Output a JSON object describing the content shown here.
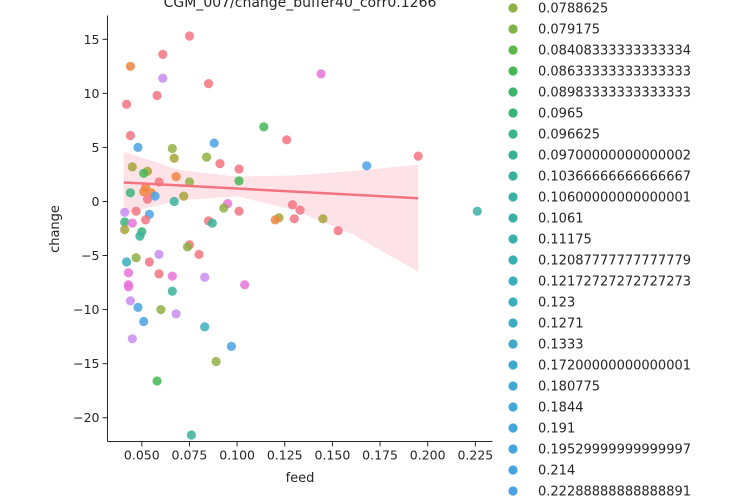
{
  "chart_data": {
    "type": "scatter",
    "title": "CGM_007/change_buffer40_corr0.1266",
    "xlabel": "feed",
    "ylabel": "change",
    "xlim": [
      0.032,
      0.234
    ],
    "ylim": [
      -22.2,
      17.2
    ],
    "xticks": [
      0.05,
      0.075,
      0.1,
      0.125,
      0.15,
      0.175,
      0.2,
      0.225
    ],
    "xtick_labels": [
      "0.050",
      "0.075",
      "0.100",
      "0.125",
      "0.150",
      "0.175",
      "0.200",
      "0.225"
    ],
    "yticks": [
      -20,
      -15,
      -10,
      -5,
      0,
      5,
      10,
      15
    ],
    "ytick_labels": [
      "−20",
      "−15",
      "−10",
      "−5",
      "0",
      "5",
      "10",
      "15"
    ],
    "grid": false,
    "legend_position": "right",
    "legend": [
      {
        "label": "0.0788625",
        "color": "#8fb043"
      },
      {
        "label": "0.079175",
        "color": "#7fb346"
      },
      {
        "label": "0.08408333333333334",
        "color": "#5ab748"
      },
      {
        "label": "0.08633333333333333",
        "color": "#45b856"
      },
      {
        "label": "0.08983333333333333",
        "color": "#3bb66a"
      },
      {
        "label": "0.0965",
        "color": "#39b479"
      },
      {
        "label": "0.096625",
        "color": "#38b486"
      },
      {
        "label": "0.09700000000000002",
        "color": "#38b391"
      },
      {
        "label": "0.10366666666666667",
        "color": "#39b29a"
      },
      {
        "label": "0.10600000000000001",
        "color": "#39b2a1"
      },
      {
        "label": "0.1061",
        "color": "#39b1a8"
      },
      {
        "label": "0.11175",
        "color": "#3ab0ad"
      },
      {
        "label": "0.12087777777777779",
        "color": "#3aafb3"
      },
      {
        "label": "0.12172727272727273",
        "color": "#3baeb9"
      },
      {
        "label": "0.123",
        "color": "#3badbe"
      },
      {
        "label": "0.1271",
        "color": "#3cacc3"
      },
      {
        "label": "0.1333",
        "color": "#3dabc8"
      },
      {
        "label": "0.17200000000000001",
        "color": "#3eaacd"
      },
      {
        "label": "0.180775",
        "color": "#40a9d2"
      },
      {
        "label": "0.1844",
        "color": "#42a8d7"
      },
      {
        "label": "0.191",
        "color": "#44a6dc"
      },
      {
        "label": "0.19529999999999997",
        "color": "#46a4e0"
      },
      {
        "label": "0.214",
        "color": "#48a3e3"
      },
      {
        "label": "0.22288888888888891",
        "color": "#4aa1e6"
      }
    ],
    "points": [
      {
        "x": 0.075,
        "y": 15.3,
        "color": "#f37480"
      },
      {
        "x": 0.044,
        "y": 12.5,
        "color": "#ef8540"
      },
      {
        "x": 0.061,
        "y": 13.6,
        "color": "#f37480"
      },
      {
        "x": 0.061,
        "y": 11.4,
        "color": "#c78cf0"
      },
      {
        "x": 0.085,
        "y": 10.9,
        "color": "#f37480"
      },
      {
        "x": 0.144,
        "y": 11.8,
        "color": "#e874d8"
      },
      {
        "x": 0.058,
        "y": 9.8,
        "color": "#f37480"
      },
      {
        "x": 0.042,
        "y": 9.0,
        "color": "#f37480"
      },
      {
        "x": 0.114,
        "y": 6.9,
        "color": "#45b856"
      },
      {
        "x": 0.044,
        "y": 6.1,
        "color": "#f37480"
      },
      {
        "x": 0.126,
        "y": 5.7,
        "color": "#f37480"
      },
      {
        "x": 0.088,
        "y": 5.4,
        "color": "#48a3e3"
      },
      {
        "x": 0.048,
        "y": 5.0,
        "color": "#48a3e3"
      },
      {
        "x": 0.066,
        "y": 4.9,
        "color": "#8fb043"
      },
      {
        "x": 0.195,
        "y": 4.2,
        "color": "#f37480"
      },
      {
        "x": 0.084,
        "y": 4.1,
        "color": "#8fb043"
      },
      {
        "x": 0.067,
        "y": 4.0,
        "color": "#a8a33a"
      },
      {
        "x": 0.091,
        "y": 3.5,
        "color": "#f37480"
      },
      {
        "x": 0.168,
        "y": 3.3,
        "color": "#48a3e3"
      },
      {
        "x": 0.045,
        "y": 3.2,
        "color": "#a8a33a"
      },
      {
        "x": 0.101,
        "y": 3.0,
        "color": "#f37480"
      },
      {
        "x": 0.053,
        "y": 2.8,
        "color": "#a8a33a"
      },
      {
        "x": 0.051,
        "y": 2.6,
        "color": "#45b856"
      },
      {
        "x": 0.068,
        "y": 2.3,
        "color": "#ef8540"
      },
      {
        "x": 0.101,
        "y": 1.9,
        "color": "#45b856"
      },
      {
        "x": 0.075,
        "y": 1.8,
        "color": "#8fb043"
      },
      {
        "x": 0.059,
        "y": 1.8,
        "color": "#f37480"
      },
      {
        "x": 0.052,
        "y": 1.3,
        "color": "#ef8540"
      },
      {
        "x": 0.044,
        "y": 0.8,
        "color": "#39b479"
      },
      {
        "x": 0.051,
        "y": 0.9,
        "color": "#ef8540"
      },
      {
        "x": 0.055,
        "y": 0.8,
        "color": "#ef8540"
      },
      {
        "x": 0.057,
        "y": 0.5,
        "color": "#48a3e3"
      },
      {
        "x": 0.072,
        "y": 0.5,
        "color": "#a8a33a"
      },
      {
        "x": 0.053,
        "y": 0.2,
        "color": "#f37480"
      },
      {
        "x": 0.067,
        "y": 0.0,
        "color": "#39b29a"
      },
      {
        "x": 0.095,
        "y": -0.2,
        "color": "#e874d8"
      },
      {
        "x": 0.129,
        "y": -0.3,
        "color": "#f37480"
      },
      {
        "x": 0.093,
        "y": -0.6,
        "color": "#8fb043"
      },
      {
        "x": 0.133,
        "y": -0.8,
        "color": "#f37480"
      },
      {
        "x": 0.047,
        "y": -0.9,
        "color": "#f37480"
      },
      {
        "x": 0.226,
        "y": -0.9,
        "color": "#39b2a1"
      },
      {
        "x": 0.101,
        "y": -0.9,
        "color": "#f37480"
      },
      {
        "x": 0.041,
        "y": -1.0,
        "color": "#c78cf0"
      },
      {
        "x": 0.054,
        "y": -1.2,
        "color": "#48a3e3"
      },
      {
        "x": 0.122,
        "y": -1.5,
        "color": "#a8a33a"
      },
      {
        "x": 0.13,
        "y": -1.6,
        "color": "#f37480"
      },
      {
        "x": 0.145,
        "y": -1.6,
        "color": "#a8a33a"
      },
      {
        "x": 0.12,
        "y": -1.7,
        "color": "#ef8540"
      },
      {
        "x": 0.052,
        "y": -1.7,
        "color": "#f37480"
      },
      {
        "x": 0.085,
        "y": -1.8,
        "color": "#f37480"
      },
      {
        "x": 0.041,
        "y": -1.9,
        "color": "#39b479"
      },
      {
        "x": 0.045,
        "y": -2.0,
        "color": "#e874d8"
      },
      {
        "x": 0.087,
        "y": -2.0,
        "color": "#39b29a"
      },
      {
        "x": 0.041,
        "y": -2.6,
        "color": "#a8a33a"
      },
      {
        "x": 0.153,
        "y": -2.7,
        "color": "#f37480"
      },
      {
        "x": 0.05,
        "y": -2.8,
        "color": "#39b479"
      },
      {
        "x": 0.049,
        "y": -3.2,
        "color": "#39b29a"
      },
      {
        "x": 0.075,
        "y": -4.0,
        "color": "#f37480"
      },
      {
        "x": 0.074,
        "y": -4.2,
        "color": "#8fb043"
      },
      {
        "x": 0.08,
        "y": -4.9,
        "color": "#f37480"
      },
      {
        "x": 0.059,
        "y": -4.9,
        "color": "#c78cf0"
      },
      {
        "x": 0.047,
        "y": -5.2,
        "color": "#8fb043"
      },
      {
        "x": 0.042,
        "y": -5.6,
        "color": "#3badbe"
      },
      {
        "x": 0.054,
        "y": -5.6,
        "color": "#f37480"
      },
      {
        "x": 0.043,
        "y": -6.6,
        "color": "#e874d8"
      },
      {
        "x": 0.059,
        "y": -6.7,
        "color": "#f37480"
      },
      {
        "x": 0.066,
        "y": -6.9,
        "color": "#e874d8"
      },
      {
        "x": 0.083,
        "y": -7.0,
        "color": "#c78cf0"
      },
      {
        "x": 0.104,
        "y": -7.7,
        "color": "#e874d8"
      },
      {
        "x": 0.043,
        "y": -7.7,
        "color": "#e874d8"
      },
      {
        "x": 0.043,
        "y": -7.9,
        "color": "#e874d8"
      },
      {
        "x": 0.066,
        "y": -8.3,
        "color": "#39b29a"
      },
      {
        "x": 0.044,
        "y": -9.2,
        "color": "#c78cf0"
      },
      {
        "x": 0.048,
        "y": -9.8,
        "color": "#48a3e3"
      },
      {
        "x": 0.06,
        "y": -10.0,
        "color": "#8fb043"
      },
      {
        "x": 0.068,
        "y": -10.4,
        "color": "#c78cf0"
      },
      {
        "x": 0.051,
        "y": -11.1,
        "color": "#48a3e3"
      },
      {
        "x": 0.083,
        "y": -11.6,
        "color": "#3badbe"
      },
      {
        "x": 0.045,
        "y": -12.7,
        "color": "#c78cf0"
      },
      {
        "x": 0.097,
        "y": -13.4,
        "color": "#48a3e3"
      },
      {
        "x": 0.089,
        "y": -14.8,
        "color": "#8fb043"
      },
      {
        "x": 0.058,
        "y": -16.6,
        "color": "#45b856"
      },
      {
        "x": 0.076,
        "y": -21.6,
        "color": "#39b29a"
      }
    ],
    "regression": {
      "color": "#f37480",
      "ci_color": "#fbd0d8",
      "line": [
        [
          0.0405,
          1.75
        ],
        [
          0.195,
          0.3
        ]
      ],
      "ci_upper": [
        [
          0.0405,
          4.6
        ],
        [
          0.07,
          2.9
        ],
        [
          0.1,
          2.3
        ],
        [
          0.13,
          2.4
        ],
        [
          0.16,
          2.8
        ],
        [
          0.195,
          3.4
        ]
      ],
      "ci_lower": [
        [
          0.0405,
          -1.1
        ],
        [
          0.07,
          0.1
        ],
        [
          0.1,
          0.5
        ],
        [
          0.13,
          -0.8
        ],
        [
          0.16,
          -3.0
        ],
        [
          0.195,
          -6.5
        ]
      ]
    }
  }
}
